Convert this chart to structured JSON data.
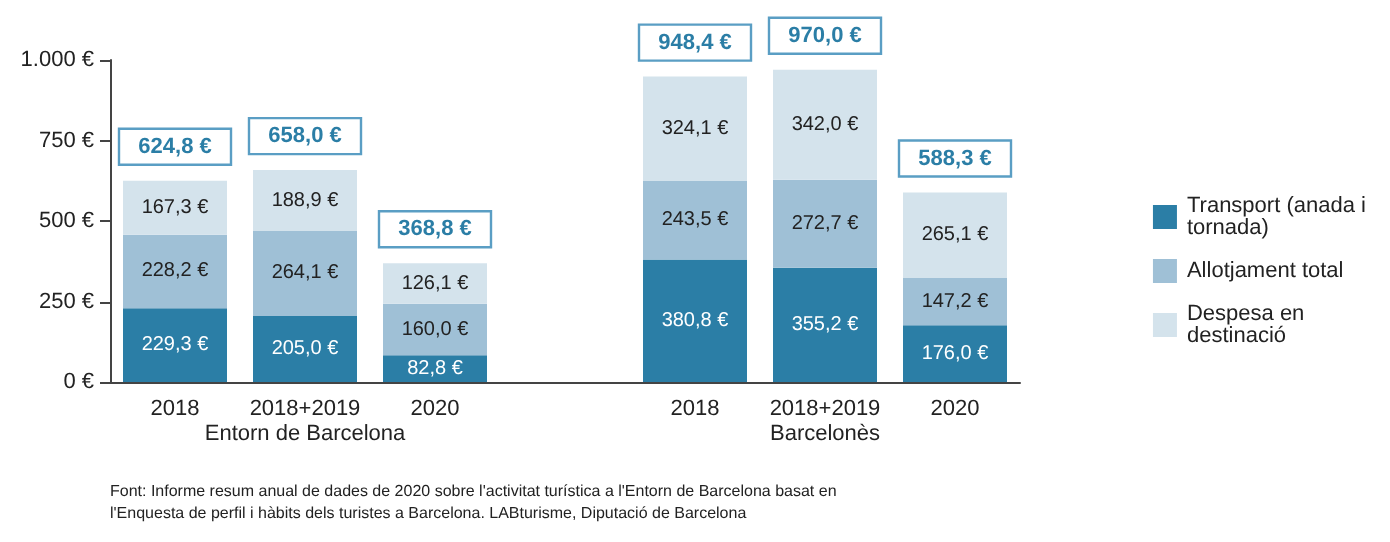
{
  "chart_data": {
    "type": "bar",
    "stacked": true,
    "categories": [
      "2018",
      "2018+2019",
      "2020",
      null,
      "2018",
      "2018+2019",
      "2020"
    ],
    "series": [
      {
        "name": "Transport (anada i tornada)",
        "color": "#2b7ea6",
        "values": [
          229.3,
          205.0,
          82.8,
          null,
          380.8,
          355.2,
          176.0
        ],
        "value_labels": [
          "229,3 €",
          "205,0 €",
          "82,8 €",
          null,
          "380,8 €",
          "355,2 €",
          "176,0 €"
        ]
      },
      {
        "name": "Allotjament total",
        "color": "#9fc0d6",
        "values": [
          228.2,
          264.1,
          160.0,
          null,
          243.5,
          272.7,
          147.2
        ],
        "value_labels": [
          "228,2 €",
          "264,1 €",
          "160,0 €",
          null,
          "243,5 €",
          "272,7 €",
          "147,2 €"
        ]
      },
      {
        "name": "Despesa en destinació",
        "color": "#d4e3ec",
        "values": [
          167.3,
          188.9,
          126.1,
          null,
          324.1,
          342.0,
          265.1
        ],
        "value_labels": [
          "167,3 €",
          "188,9 €",
          "126,1 €",
          null,
          "324,1 €",
          "342,0 €",
          "265,1 €"
        ]
      }
    ],
    "totals": [
      "624,8 €",
      "658,0 €",
      "368,8 €",
      null,
      "948,4 €",
      "970,0 €",
      "588,3 €"
    ],
    "ylim": [
      0,
      1000
    ],
    "yticks": [
      {
        "value": 0,
        "label": "0 €"
      },
      {
        "value": 250,
        "label": "250 €"
      },
      {
        "value": 500,
        "label": "500 €"
      },
      {
        "value": 750,
        "label": "750 €"
      },
      {
        "value": 1000,
        "label": "1.000 €"
      }
    ],
    "grid": false,
    "legend": "right",
    "annotations": [
      "Entorn de Barcelona",
      "Barcelonès",
      "Font: Informe resum anual de dades de 2020 sobre l'activitat turística a l'Entorn de Barcelona basat en l'Enquesta de perfil i hàbits dels turistes a Barcelona. LABturisme, Diputació de Barcelona"
    ]
  }
}
